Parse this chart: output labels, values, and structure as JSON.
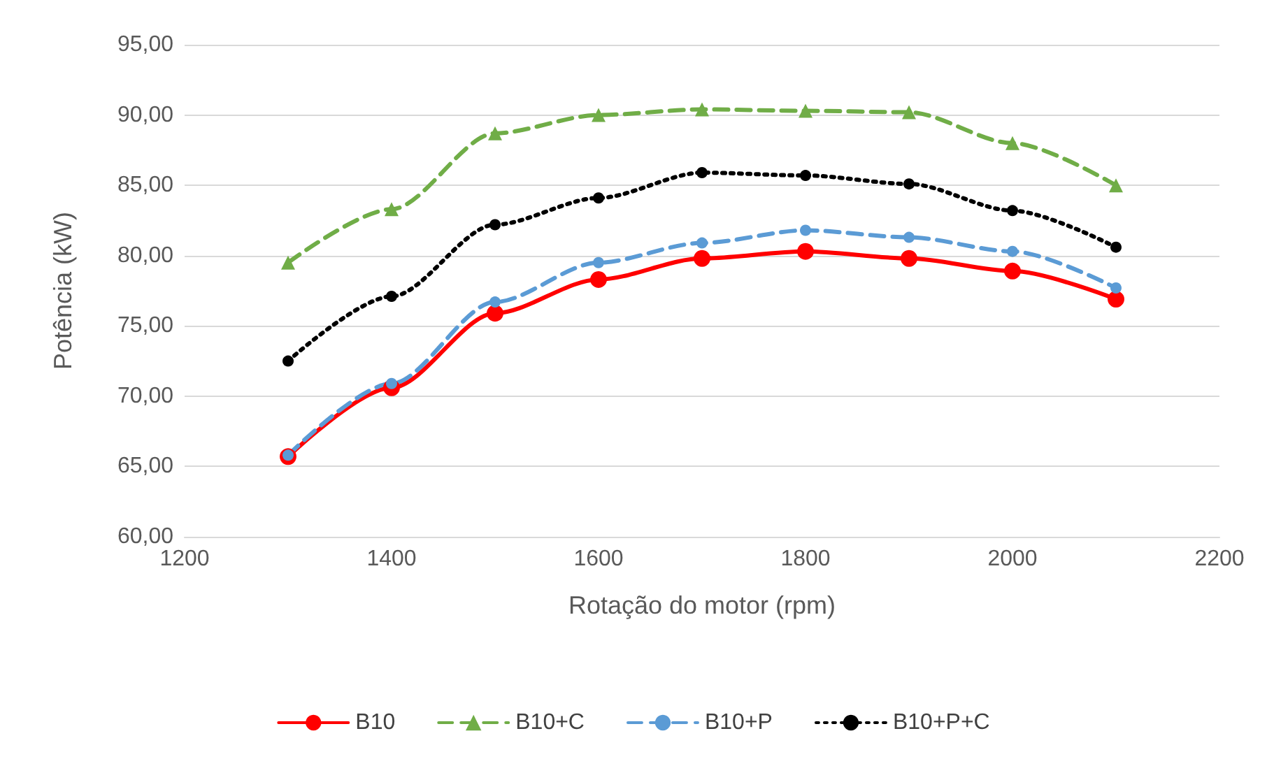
{
  "chart_data": {
    "type": "line",
    "xlabel": "Rotação do motor (rpm)",
    "ylabel": "Potência (kW)",
    "x": [
      1300,
      1400,
      1500,
      1600,
      1700,
      1800,
      1900,
      2000,
      2100
    ],
    "series": [
      {
        "name": "B10",
        "color": "#ff0000",
        "marker": "circle",
        "line_style": "solid",
        "values": [
          65.7,
          70.6,
          75.9,
          78.3,
          79.8,
          80.3,
          79.8,
          78.9,
          76.9
        ]
      },
      {
        "name": "B10+C",
        "color": "#70ad47",
        "marker": "triangle",
        "line_style": "dashed",
        "values": [
          79.5,
          83.3,
          88.7,
          90.0,
          90.4,
          90.3,
          90.2,
          88.0,
          85.0
        ]
      },
      {
        "name": "B10+P",
        "color": "#5b9bd5",
        "marker": "circle",
        "line_style": "dashed",
        "values": [
          65.8,
          70.9,
          76.7,
          79.5,
          80.9,
          81.8,
          81.3,
          80.3,
          77.7
        ]
      },
      {
        "name": "B10+P+C",
        "color": "#000000",
        "marker": "circle",
        "line_style": "dotted",
        "values": [
          72.5,
          77.1,
          82.2,
          84.1,
          85.9,
          85.7,
          85.1,
          83.2,
          80.6
        ]
      }
    ],
    "xlim": [
      1200,
      2200
    ],
    "xticks": [
      1200,
      1400,
      1600,
      1800,
      2000,
      2200
    ],
    "ylim": [
      60,
      95
    ],
    "yticks": [
      {
        "value": 60,
        "label": "60,00"
      },
      {
        "value": 65,
        "label": "65,00"
      },
      {
        "value": 70,
        "label": "70,00"
      },
      {
        "value": 75,
        "label": "75,00"
      },
      {
        "value": 80,
        "label": "80,00"
      },
      {
        "value": 85,
        "label": "85,00"
      },
      {
        "value": 90,
        "label": "90,00"
      },
      {
        "value": 95,
        "label": "95,00"
      }
    ],
    "grid": "y",
    "legend": "bottom"
  }
}
